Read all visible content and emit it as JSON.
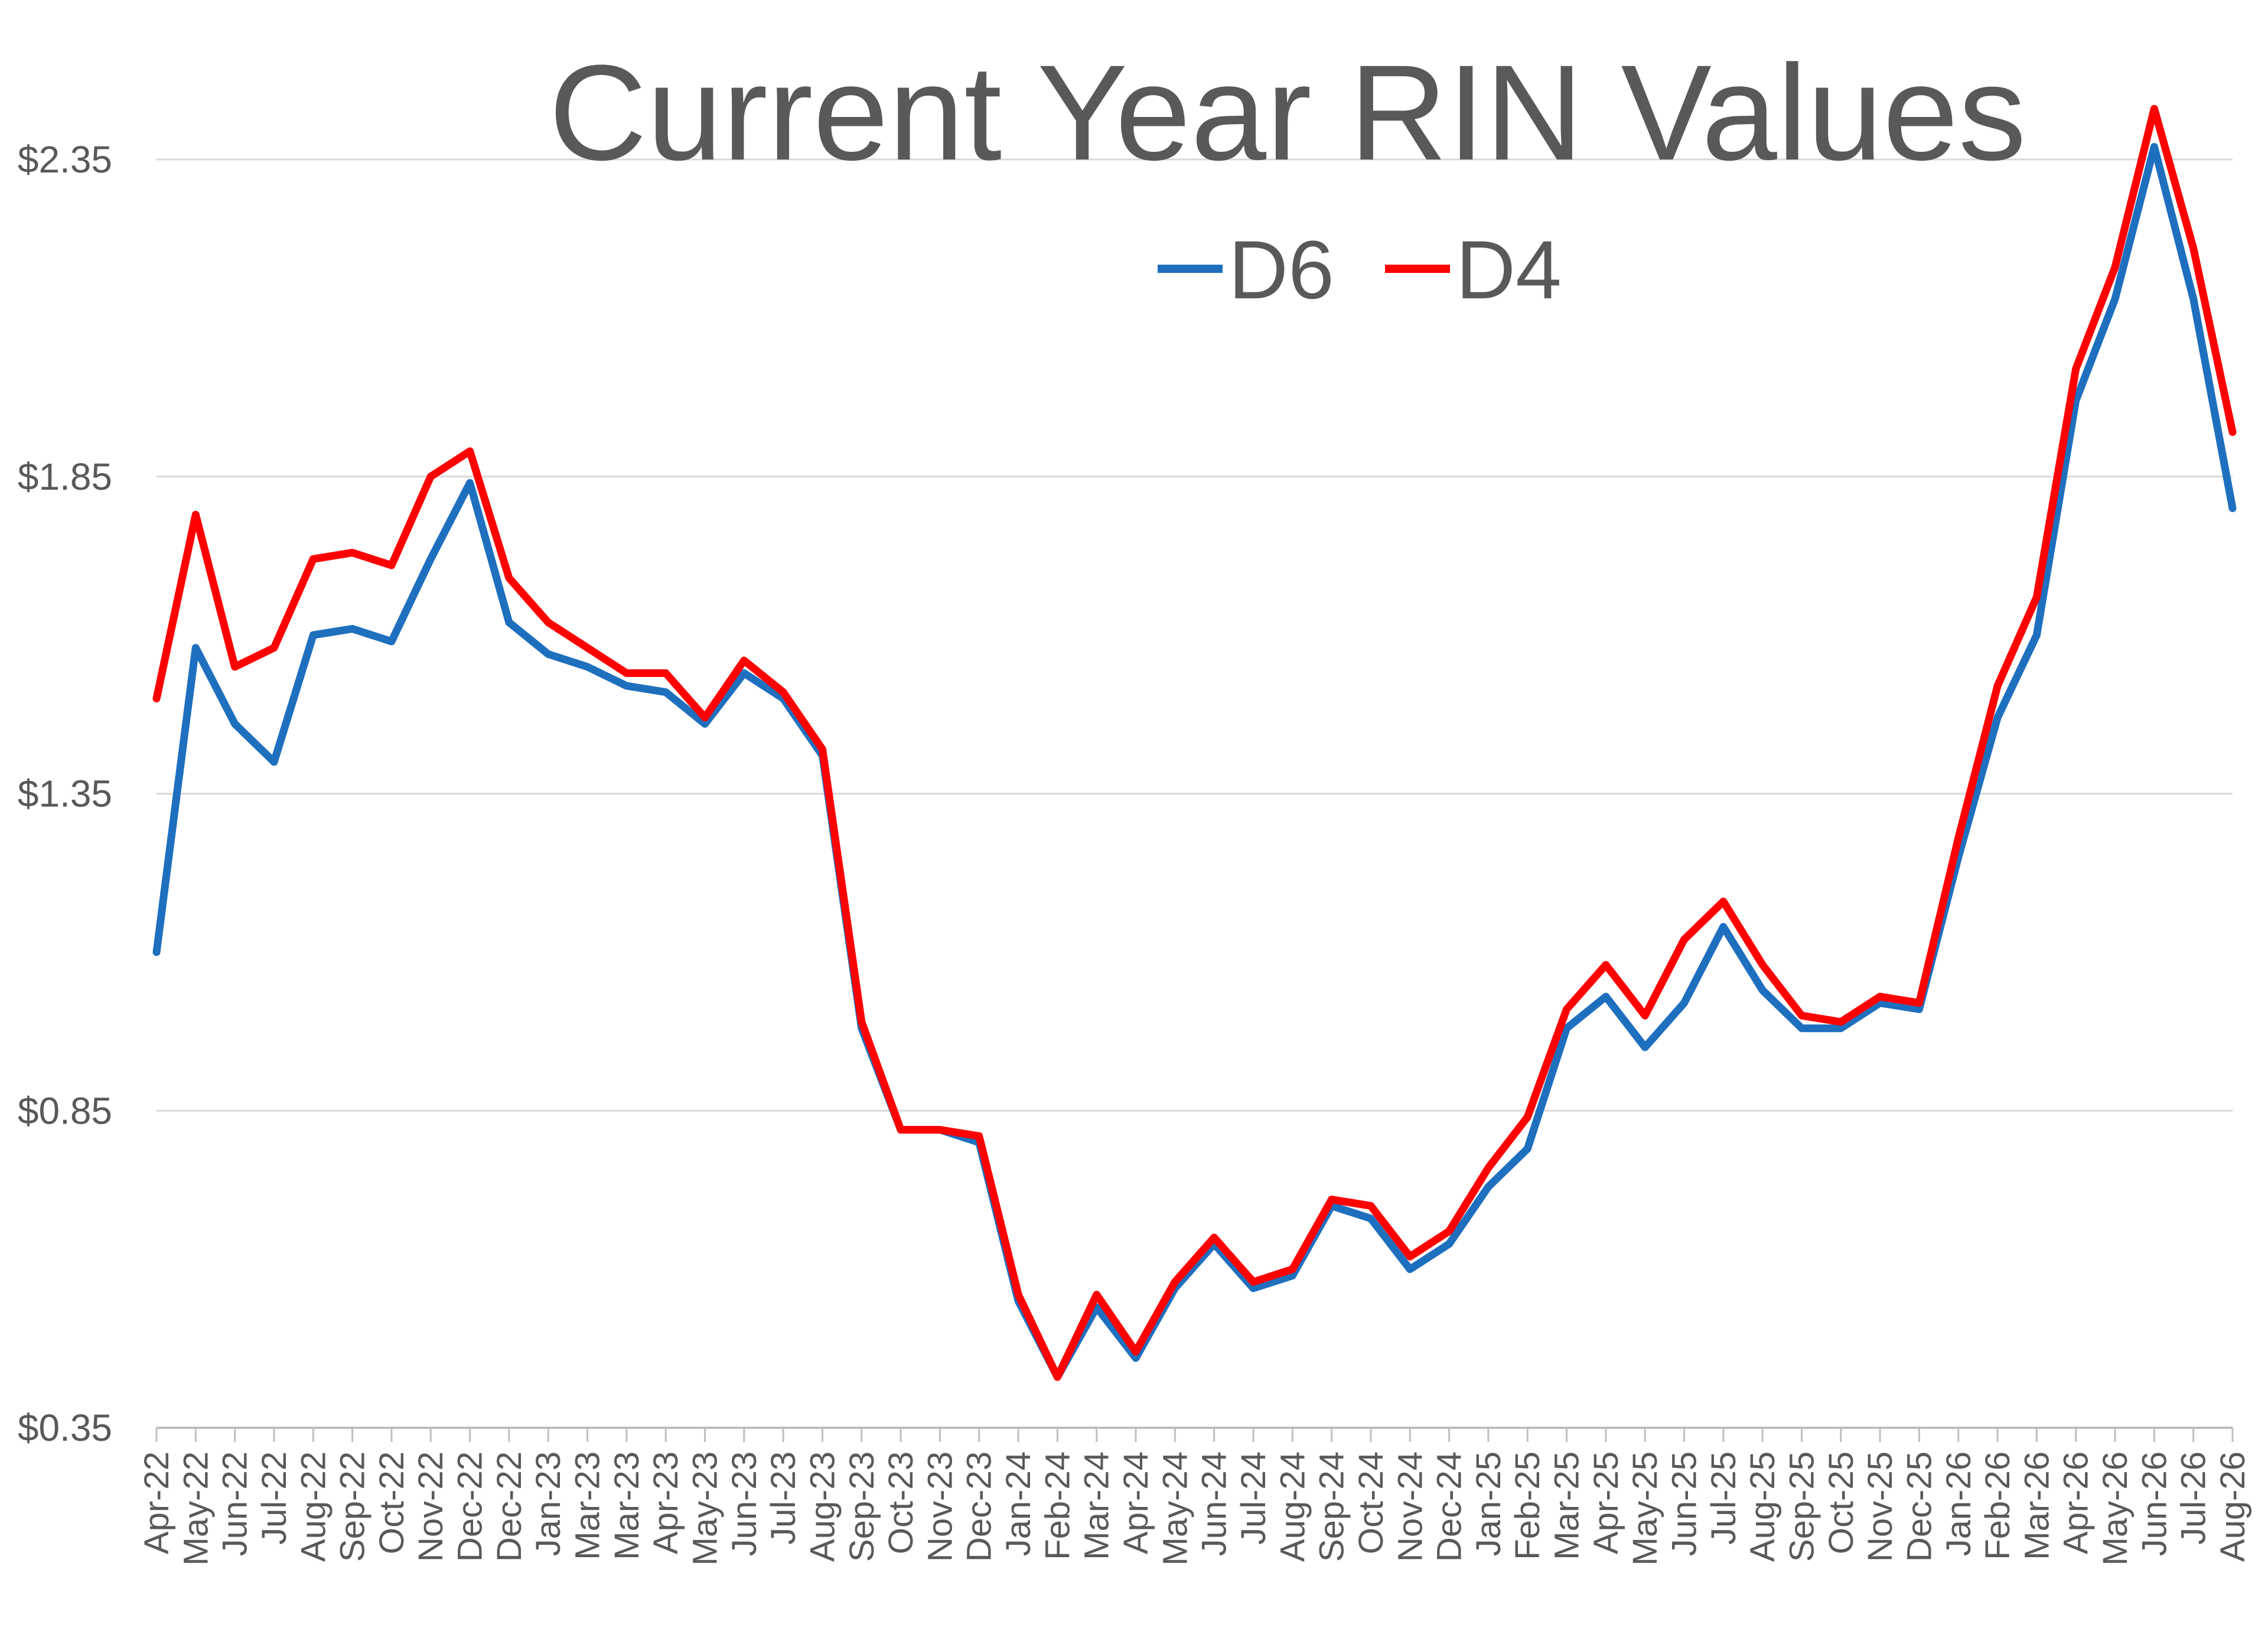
{
  "chart_data": {
    "type": "line",
    "title": "Current Year RIN Values",
    "xlabel": "",
    "ylabel": "",
    "ylim": [
      0.35,
      2.35
    ],
    "y_ticks": [
      "$0.35",
      "$0.85",
      "$1.35",
      "$1.85",
      "$2.35"
    ],
    "y_tick_values": [
      0.35,
      0.85,
      1.35,
      1.85,
      2.35
    ],
    "grid": "horizontal",
    "legend_placement": "top-center",
    "categories": [
      "Apr-22",
      "May-22",
      "Jun-22",
      "Jul-22",
      "Aug-22",
      "Sep-22",
      "Oct-22",
      "Nov-22",
      "Dec-22",
      "Dec-22",
      "Jan-23",
      "Mar-23",
      "Mar-23",
      "Apr-23",
      "May-23",
      "Jun-23",
      "Jul-23",
      "Aug-23",
      "Sep-23",
      "Oct-23",
      "Nov-23",
      "Dec-23",
      "Jan-24",
      "Feb-24",
      "Mar-24",
      "Apr-24",
      "May-24",
      "Jun-24",
      "Jul-24",
      "Aug-24",
      "Sep-24",
      "Oct-24",
      "Nov-24",
      "Dec-24",
      "Jan-25",
      "Feb-25",
      "Mar-25",
      "Apr-25",
      "May-25",
      "Jun-25",
      "Jul-25",
      "Aug-25",
      "Sep-25",
      "Oct-25",
      "Nov-25",
      "Dec-25",
      "Jan-26",
      "Feb-26",
      "Mar-26",
      "Apr-26",
      "May-26",
      "Jun-26",
      "Jul-26",
      "Aug-26"
    ],
    "series": [
      {
        "name": "D6",
        "color": "#1F6FBF",
        "values": [
          1.1,
          1.58,
          1.46,
          1.4,
          1.6,
          1.61,
          1.59,
          1.72,
          1.84,
          1.62,
          1.57,
          1.55,
          1.52,
          1.51,
          1.46,
          1.54,
          1.5,
          1.41,
          0.98,
          0.82,
          0.82,
          0.8,
          0.55,
          0.43,
          0.54,
          0.46,
          0.57,
          0.64,
          0.57,
          0.59,
          0.7,
          0.68,
          0.6,
          0.64,
          0.73,
          0.79,
          0.98,
          1.03,
          0.95,
          1.02,
          1.14,
          1.04,
          0.98,
          0.98,
          1.02,
          1.01,
          1.25,
          1.47,
          1.6,
          1.97,
          2.13,
          2.37,
          2.13,
          1.8
        ]
      },
      {
        "name": "D4",
        "color": "#FF0000",
        "values": [
          1.5,
          1.79,
          1.55,
          1.58,
          1.72,
          1.73,
          1.71,
          1.85,
          1.89,
          1.69,
          1.62,
          1.58,
          1.54,
          1.54,
          1.47,
          1.56,
          1.51,
          1.42,
          0.99,
          0.82,
          0.82,
          0.81,
          0.56,
          0.43,
          0.56,
          0.47,
          0.58,
          0.65,
          0.58,
          0.6,
          0.71,
          0.7,
          0.62,
          0.66,
          0.76,
          0.84,
          1.01,
          1.08,
          1.0,
          1.12,
          1.18,
          1.08,
          1.0,
          0.99,
          1.03,
          1.02,
          1.28,
          1.52,
          1.66,
          2.02,
          2.18,
          2.43,
          2.21,
          1.92
        ]
      }
    ]
  }
}
